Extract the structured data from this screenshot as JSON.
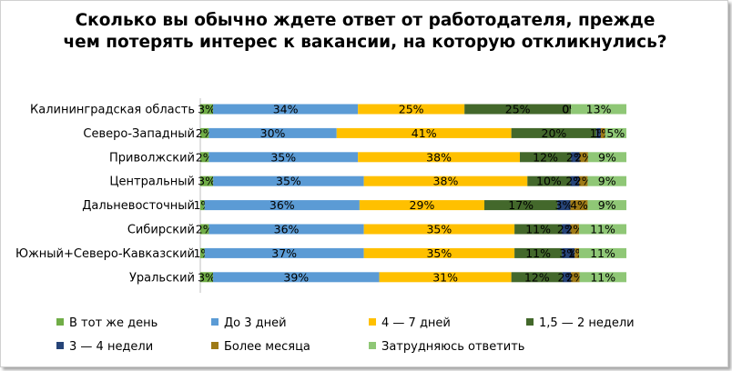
{
  "chart_data": {
    "type": "bar",
    "orientation": "horizontal",
    "stacked": "100%",
    "title": "Сколько вы обычно ждете ответ от работодателя, прежде чем потерять интерес к вакансии, на которую откликнулись?",
    "categories": [
      "Калининградская область",
      "Северо-Западный",
      "Приволжский",
      "Центральный",
      "Дальневосточный",
      "Сибирский",
      "Южный+Северо-Кавказский",
      "Уральский"
    ],
    "series": [
      {
        "name": "В тот же день",
        "color": "#70ad47",
        "values": [
          3,
          2,
          2,
          3,
          1,
          2,
          1,
          3
        ]
      },
      {
        "name": "До 3 дней",
        "color": "#5b9bd5",
        "values": [
          34,
          30,
          35,
          35,
          36,
          36,
          37,
          39
        ]
      },
      {
        "name": "4 — 7 дней",
        "color": "#ffc000",
        "values": [
          25,
          41,
          38,
          38,
          29,
          35,
          35,
          31
        ]
      },
      {
        "name": "1,5 — 2 недели",
        "color": "#43682b",
        "values": [
          25,
          20,
          12,
          10,
          17,
          11,
          11,
          12
        ]
      },
      {
        "name": "3 — 4 недели",
        "color": "#264478",
        "values": [
          0,
          1,
          2,
          2,
          3,
          2,
          3,
          2
        ]
      },
      {
        "name": "Более месяца",
        "color": "#9e7a16",
        "values": [
          0,
          1,
          2,
          2,
          4,
          2,
          1,
          2
        ]
      },
      {
        "name": "Затрудняюсь ответить",
        "color": "#8fc776",
        "values": [
          13,
          5,
          9,
          9,
          9,
          11,
          11,
          11
        ]
      }
    ],
    "value_labels": [
      [
        "3%",
        "34%",
        "25%",
        "25%",
        "0%",
        "0%",
        "13%"
      ],
      [
        "2%",
        "30%",
        "41%",
        "20%",
        "1%",
        "1%",
        "5%"
      ],
      [
        "2%",
        "35%",
        "38%",
        "12%",
        "2%",
        "2%",
        "9%"
      ],
      [
        "3%",
        "35%",
        "38%",
        "10%",
        "2%",
        "2%",
        "9%"
      ],
      [
        "1%",
        "36%",
        "29%",
        "17%",
        "3%",
        "4%",
        "9%"
      ],
      [
        "2%",
        "36%",
        "35%",
        "11%",
        "2%",
        "2%",
        "11%"
      ],
      [
        "1%",
        "37%",
        "35%",
        "11%",
        "3%",
        "1%",
        "11%"
      ],
      [
        "3%",
        "39%",
        "31%",
        "12%",
        "2%",
        "2%",
        "11%"
      ]
    ],
    "legend_position": "bottom",
    "grid": false
  }
}
